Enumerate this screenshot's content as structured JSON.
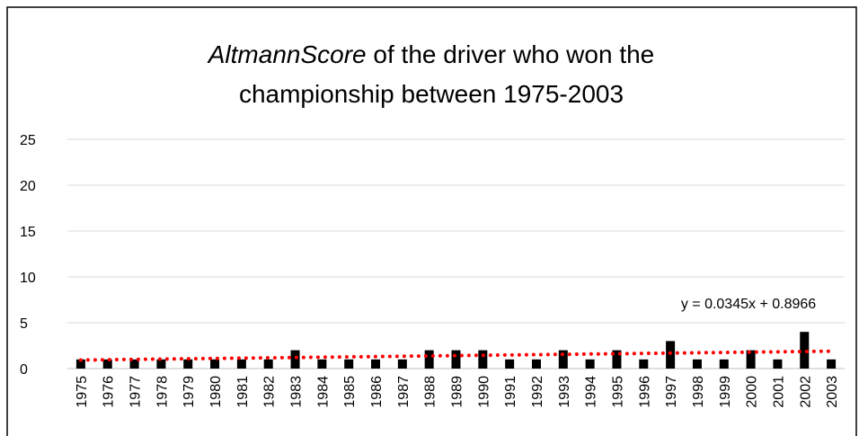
{
  "chart_data": {
    "type": "bar",
    "title": [
      [
        "AltmannScore",
        " of the driver who won the"
      ],
      [
        "championship between 1975-2003"
      ]
    ],
    "categories": [
      "1975",
      "1976",
      "1977",
      "1978",
      "1979",
      "1980",
      "1981",
      "1982",
      "1983",
      "1984",
      "1985",
      "1986",
      "1987",
      "1988",
      "1989",
      "1990",
      "1991",
      "1992",
      "1993",
      "1994",
      "1995",
      "1996",
      "1997",
      "1998",
      "1999",
      "2000",
      "2001",
      "2002",
      "2003"
    ],
    "values": [
      1,
      1,
      1,
      1,
      1,
      1,
      1,
      1,
      2,
      1,
      1,
      1,
      1,
      2,
      2,
      2,
      1,
      1,
      2,
      1,
      2,
      1,
      3,
      1,
      1,
      2,
      1,
      4,
      1
    ],
    "color": "#000000",
    "ylim": [
      0,
      25
    ],
    "yticks": [
      0,
      5,
      10,
      15,
      20,
      25
    ],
    "grid": true,
    "trendline": {
      "label": "y = 0.0345x + 0.8966",
      "slope": 0.0345,
      "intercept": 0.8966,
      "color": "#ff0000"
    }
  }
}
